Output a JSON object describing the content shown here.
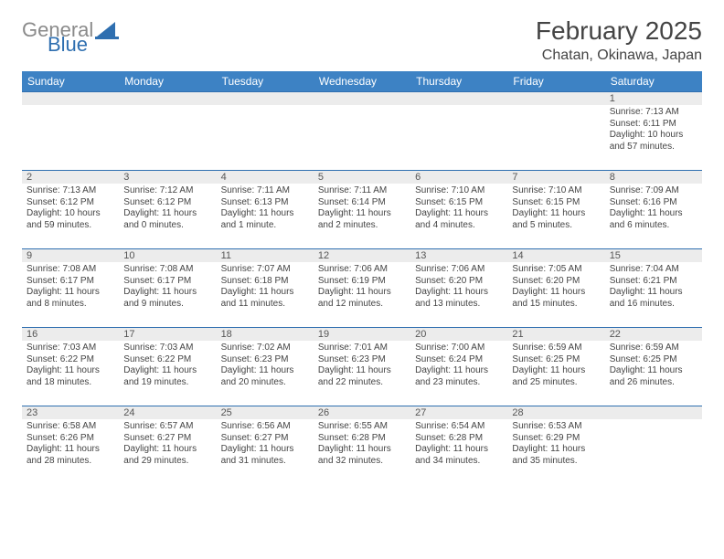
{
  "logo": {
    "textGeneral": "General",
    "textBlue": "Blue",
    "sailColor": "#2f6fb0",
    "grayColor": "#8a8a8a"
  },
  "header": {
    "monthTitle": "February 2025",
    "location": "Chatan, Okinawa, Japan"
  },
  "theme": {
    "headerBg": "#3d82c4",
    "headerFg": "#ffffff",
    "cellBorder": "#2f6fb0",
    "numBarBg": "#ececec",
    "textColor": "#444444",
    "bodyFont": 10,
    "titleFont": 28
  },
  "weekdays": [
    "Sunday",
    "Monday",
    "Tuesday",
    "Wednesday",
    "Thursday",
    "Friday",
    "Saturday"
  ],
  "startWeekday": 6,
  "days": [
    {
      "n": 1,
      "sunrise": "7:13 AM",
      "sunset": "6:11 PM",
      "dayH": 10,
      "dayM": 57
    },
    {
      "n": 2,
      "sunrise": "7:13 AM",
      "sunset": "6:12 PM",
      "dayH": 10,
      "dayM": 59
    },
    {
      "n": 3,
      "sunrise": "7:12 AM",
      "sunset": "6:12 PM",
      "dayH": 11,
      "dayM": 0
    },
    {
      "n": 4,
      "sunrise": "7:11 AM",
      "sunset": "6:13 PM",
      "dayH": 11,
      "dayM": 1
    },
    {
      "n": 5,
      "sunrise": "7:11 AM",
      "sunset": "6:14 PM",
      "dayH": 11,
      "dayM": 2
    },
    {
      "n": 6,
      "sunrise": "7:10 AM",
      "sunset": "6:15 PM",
      "dayH": 11,
      "dayM": 4
    },
    {
      "n": 7,
      "sunrise": "7:10 AM",
      "sunset": "6:15 PM",
      "dayH": 11,
      "dayM": 5
    },
    {
      "n": 8,
      "sunrise": "7:09 AM",
      "sunset": "6:16 PM",
      "dayH": 11,
      "dayM": 6
    },
    {
      "n": 9,
      "sunrise": "7:08 AM",
      "sunset": "6:17 PM",
      "dayH": 11,
      "dayM": 8
    },
    {
      "n": 10,
      "sunrise": "7:08 AM",
      "sunset": "6:17 PM",
      "dayH": 11,
      "dayM": 9
    },
    {
      "n": 11,
      "sunrise": "7:07 AM",
      "sunset": "6:18 PM",
      "dayH": 11,
      "dayM": 11
    },
    {
      "n": 12,
      "sunrise": "7:06 AM",
      "sunset": "6:19 PM",
      "dayH": 11,
      "dayM": 12
    },
    {
      "n": 13,
      "sunrise": "7:06 AM",
      "sunset": "6:20 PM",
      "dayH": 11,
      "dayM": 13
    },
    {
      "n": 14,
      "sunrise": "7:05 AM",
      "sunset": "6:20 PM",
      "dayH": 11,
      "dayM": 15
    },
    {
      "n": 15,
      "sunrise": "7:04 AM",
      "sunset": "6:21 PM",
      "dayH": 11,
      "dayM": 16
    },
    {
      "n": 16,
      "sunrise": "7:03 AM",
      "sunset": "6:22 PM",
      "dayH": 11,
      "dayM": 18
    },
    {
      "n": 17,
      "sunrise": "7:03 AM",
      "sunset": "6:22 PM",
      "dayH": 11,
      "dayM": 19
    },
    {
      "n": 18,
      "sunrise": "7:02 AM",
      "sunset": "6:23 PM",
      "dayH": 11,
      "dayM": 20
    },
    {
      "n": 19,
      "sunrise": "7:01 AM",
      "sunset": "6:23 PM",
      "dayH": 11,
      "dayM": 22
    },
    {
      "n": 20,
      "sunrise": "7:00 AM",
      "sunset": "6:24 PM",
      "dayH": 11,
      "dayM": 23
    },
    {
      "n": 21,
      "sunrise": "6:59 AM",
      "sunset": "6:25 PM",
      "dayH": 11,
      "dayM": 25
    },
    {
      "n": 22,
      "sunrise": "6:59 AM",
      "sunset": "6:25 PM",
      "dayH": 11,
      "dayM": 26
    },
    {
      "n": 23,
      "sunrise": "6:58 AM",
      "sunset": "6:26 PM",
      "dayH": 11,
      "dayM": 28
    },
    {
      "n": 24,
      "sunrise": "6:57 AM",
      "sunset": "6:27 PM",
      "dayH": 11,
      "dayM": 29
    },
    {
      "n": 25,
      "sunrise": "6:56 AM",
      "sunset": "6:27 PM",
      "dayH": 11,
      "dayM": 31
    },
    {
      "n": 26,
      "sunrise": "6:55 AM",
      "sunset": "6:28 PM",
      "dayH": 11,
      "dayM": 32
    },
    {
      "n": 27,
      "sunrise": "6:54 AM",
      "sunset": "6:28 PM",
      "dayH": 11,
      "dayM": 34
    },
    {
      "n": 28,
      "sunrise": "6:53 AM",
      "sunset": "6:29 PM",
      "dayH": 11,
      "dayM": 35
    }
  ],
  "labels": {
    "sunrise": "Sunrise:",
    "sunset": "Sunset:",
    "daylight": "Daylight:",
    "hours": "hours",
    "and": "and",
    "minute": "minute",
    "minutes": "minutes"
  }
}
